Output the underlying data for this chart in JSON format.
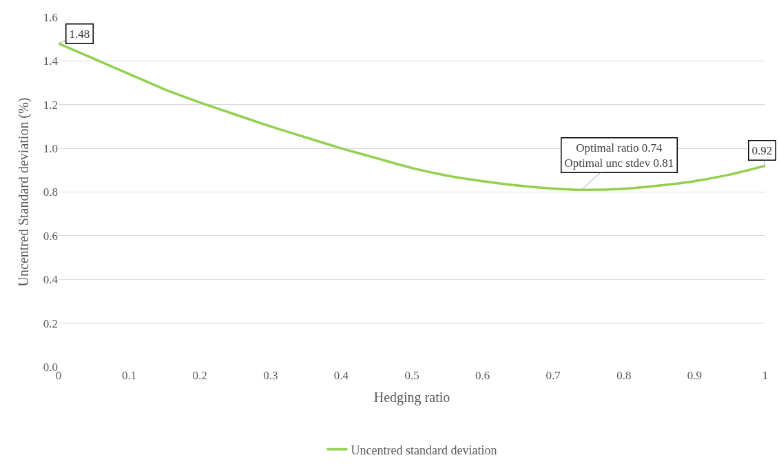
{
  "chart_data": {
    "type": "line",
    "xlabel": "Hedging ratio",
    "ylabel": "Uncentred Standard deviation (%)",
    "x": [
      0,
      0.05,
      0.1,
      0.15,
      0.2,
      0.25,
      0.3,
      0.35,
      0.4,
      0.45,
      0.5,
      0.55,
      0.6,
      0.65,
      0.7,
      0.74,
      0.8,
      0.85,
      0.9,
      0.95,
      1
    ],
    "series": [
      {
        "name": "Uncentred standard deviation",
        "color": "#92d050",
        "values": [
          1.48,
          1.41,
          1.34,
          1.27,
          1.21,
          1.155,
          1.1,
          1.05,
          1.0,
          0.955,
          0.91,
          0.875,
          0.85,
          0.83,
          0.816,
          0.81,
          0.815,
          0.83,
          0.85,
          0.88,
          0.92
        ]
      }
    ],
    "xlim": [
      0,
      1
    ],
    "ylim": [
      0,
      1.6
    ],
    "xticks": [
      0,
      0.1,
      0.2,
      0.3,
      0.4,
      0.5,
      0.6,
      0.7,
      0.8,
      0.9,
      1
    ],
    "yticks": [
      {
        "value": 0,
        "label": "0.0"
      },
      {
        "value": 0.2,
        "label": "0.2"
      },
      {
        "value": 0.4,
        "label": "0.4"
      },
      {
        "value": 0.6,
        "label": "0.6"
      },
      {
        "value": 0.8,
        "label": "0.8"
      },
      {
        "value": 1.0,
        "label": "1.0"
      },
      {
        "value": 1.2,
        "label": "1.2"
      },
      {
        "value": 1.4,
        "label": "1.4"
      },
      {
        "value": 1.6,
        "label": "1.6"
      }
    ],
    "annotations": [
      {
        "text": "1.48",
        "x": 0,
        "y": 1.48
      },
      {
        "text": "Optimal ratio 0.74\nOptimal unc stdev 0.81",
        "x": 0.74,
        "y": 0.81
      },
      {
        "text": "0.92",
        "x": 1,
        "y": 0.92
      }
    ],
    "grid": "y",
    "legend": "bottom",
    "marker": "none",
    "line_style": "solid"
  }
}
